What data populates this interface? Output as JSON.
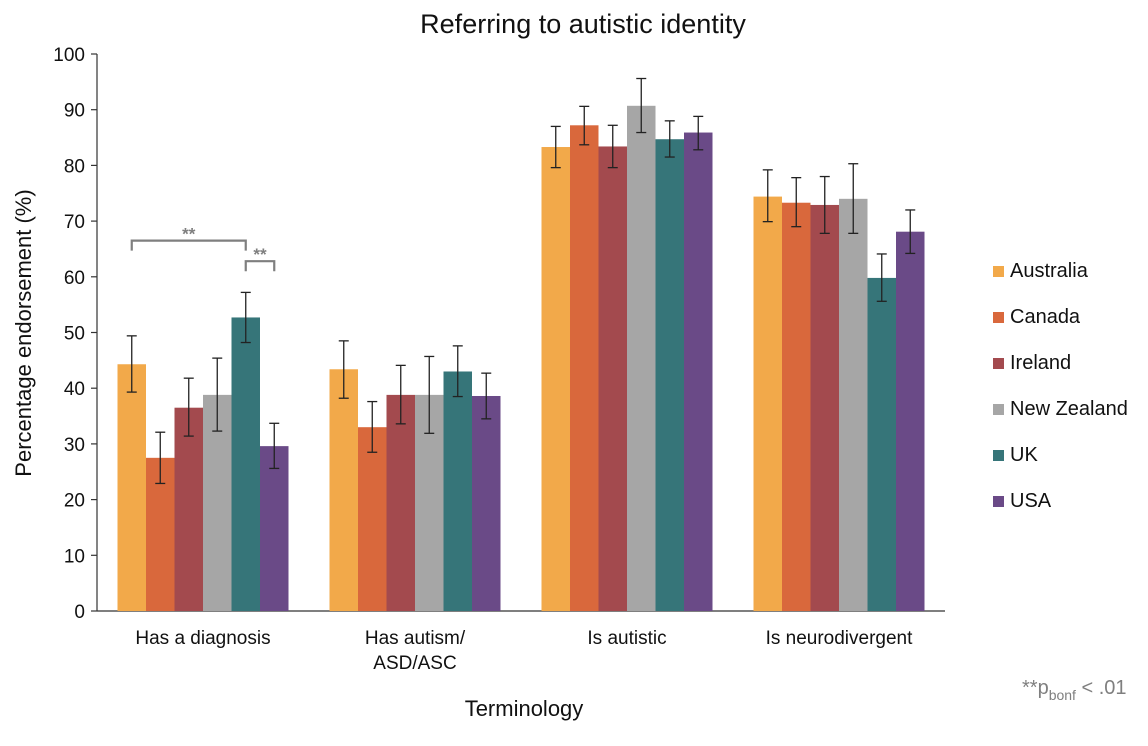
{
  "chart_data": {
    "type": "bar",
    "title": "Referring to autistic identity",
    "xlabel": "Terminology",
    "ylabel": "Percentage endorsement (%)",
    "ylim": [
      0,
      100
    ],
    "yticks": [
      0,
      10,
      20,
      30,
      40,
      50,
      60,
      70,
      80,
      90,
      100
    ],
    "grid": false,
    "legend_position": "right",
    "categories": [
      [
        "Has a diagnosis"
      ],
      [
        "Has autism/",
        "ASD/ASC"
      ],
      [
        "Is autistic"
      ],
      [
        "Is neurodivergent"
      ]
    ],
    "series": [
      {
        "name": "Australia",
        "color": "#F2A94A",
        "values": [
          44.3,
          43.4,
          83.3,
          74.4
        ],
        "error": [
          [
            39.3,
            49.4
          ],
          [
            38.2,
            48.5
          ],
          [
            79.6,
            87.0
          ],
          [
            69.9,
            79.2
          ]
        ]
      },
      {
        "name": "Canada",
        "color": "#D9683C",
        "values": [
          27.5,
          33.0,
          87.2,
          73.3
        ],
        "error": [
          [
            22.9,
            32.1
          ],
          [
            28.5,
            37.6
          ],
          [
            83.7,
            90.6
          ],
          [
            69.0,
            77.8
          ]
        ]
      },
      {
        "name": "Ireland",
        "color": "#A34A4E",
        "values": [
          36.5,
          38.8,
          83.4,
          72.9
        ],
        "error": [
          [
            31.4,
            41.8
          ],
          [
            33.6,
            44.1
          ],
          [
            79.6,
            87.2
          ],
          [
            67.8,
            78.0
          ]
        ]
      },
      {
        "name": "New Zealand",
        "color": "#A6A6A6",
        "values": [
          38.8,
          38.8,
          90.7,
          74.0
        ],
        "error": [
          [
            32.3,
            45.4
          ],
          [
            31.9,
            45.7
          ],
          [
            85.9,
            95.6
          ],
          [
            67.8,
            80.3
          ]
        ]
      },
      {
        "name": "UK",
        "color": "#367579",
        "values": [
          52.7,
          43.0,
          84.7,
          59.8
        ],
        "error": [
          [
            48.2,
            57.2
          ],
          [
            38.5,
            47.6
          ],
          [
            81.5,
            88.0
          ],
          [
            55.6,
            64.1
          ]
        ]
      },
      {
        "name": "USA",
        "color": "#6A4A87",
        "values": [
          29.6,
          38.6,
          85.9,
          68.1
        ],
        "error": [
          [
            25.6,
            33.7
          ],
          [
            34.5,
            42.7
          ],
          [
            82.8,
            88.8
          ],
          [
            64.2,
            72.0
          ]
        ]
      }
    ],
    "annotations": {
      "significance_marks": [
        {
          "label": "**",
          "category_index": 0,
          "from_series": 0,
          "to_series": 4
        },
        {
          "label": "**",
          "category_index": 0,
          "from_series": 4,
          "to_series": 5
        }
      ],
      "footnote": {
        "prefix": "**p",
        "subscript": "bonf",
        "suffix": " < .01"
      }
    }
  }
}
